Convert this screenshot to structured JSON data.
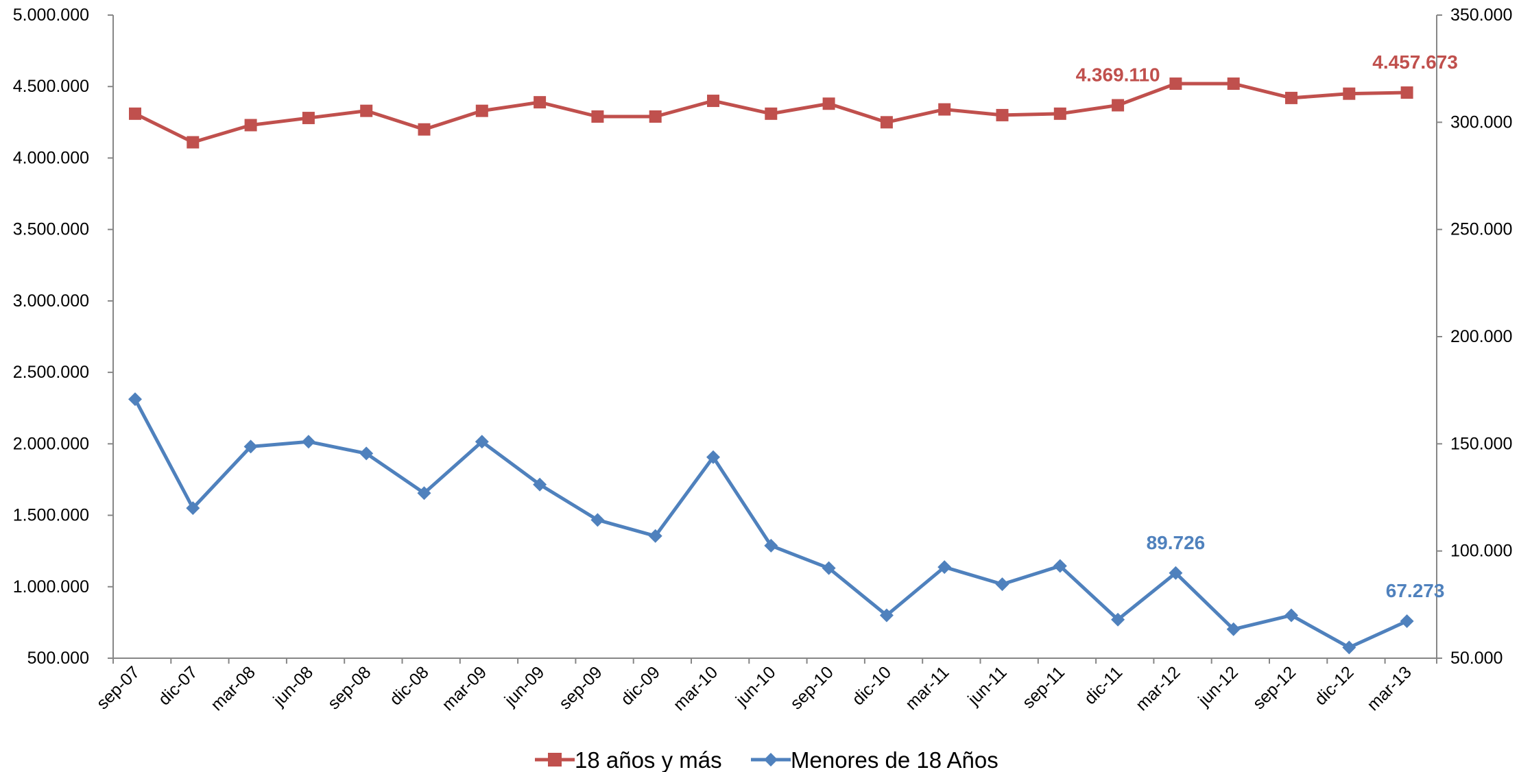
{
  "chart_data": {
    "type": "line",
    "categories": [
      "sep-07",
      "dic-07",
      "mar-08",
      "jun-08",
      "sep-08",
      "dic-08",
      "mar-09",
      "jun-09",
      "sep-09",
      "dic-09",
      "mar-10",
      "jun-10",
      "sep-10",
      "dic-10",
      "mar-11",
      "jun-11",
      "sep-11",
      "dic-11",
      "mar-12",
      "jun-12",
      "sep-12",
      "dic-12",
      "mar-13"
    ],
    "y_left": {
      "range": [
        500000,
        5000000
      ],
      "ticks": [
        500000,
        1000000,
        1500000,
        2000000,
        2500000,
        3000000,
        3500000,
        4000000,
        4500000,
        5000000
      ],
      "tick_labels": [
        "500.000",
        "1.000.000",
        "1.500.000",
        "2.000.000",
        "2.500.000",
        "3.000.000",
        "3.500.000",
        "4.000.000",
        "4.500.000",
        "5.000.000"
      ]
    },
    "y_right": {
      "range": [
        50000,
        350000
      ],
      "ticks": [
        50000,
        100000,
        150000,
        200000,
        250000,
        300000,
        350000
      ],
      "tick_labels": [
        "50.000",
        "100.000",
        "150.000",
        "200.000",
        "250.000",
        "300.000",
        "350.000"
      ]
    },
    "series": [
      {
        "name": "18 años y más",
        "axis": "left",
        "color": "#C0504D",
        "marker": "square",
        "values": [
          4310000,
          4110000,
          4230000,
          4280000,
          4330000,
          4200000,
          4330000,
          4390000,
          4290000,
          4290000,
          4400000,
          4310000,
          4380000,
          4250000,
          4340000,
          4300000,
          4310000,
          4369110,
          4520000,
          4520000,
          4420000,
          4450000,
          4457673
        ],
        "data_labels": [
          {
            "index": 17,
            "text": "4.369.110"
          },
          {
            "index": 22,
            "text": "4.457.673"
          }
        ]
      },
      {
        "name": "Menores de 18 Años",
        "axis": "right",
        "color": "#4F81BD",
        "marker": "diamond",
        "values": [
          170800,
          120000,
          148700,
          151000,
          145500,
          127000,
          151000,
          131000,
          114500,
          107000,
          143800,
          102500,
          92000,
          70000,
          92500,
          84500,
          93000,
          68000,
          89726,
          63500,
          70000,
          55000,
          67273
        ],
        "data_labels": [
          {
            "index": 18,
            "text": "89.726"
          },
          {
            "index": 22,
            "text": "67.273"
          }
        ]
      }
    ],
    "grid": false,
    "legend_position": "bottom"
  }
}
